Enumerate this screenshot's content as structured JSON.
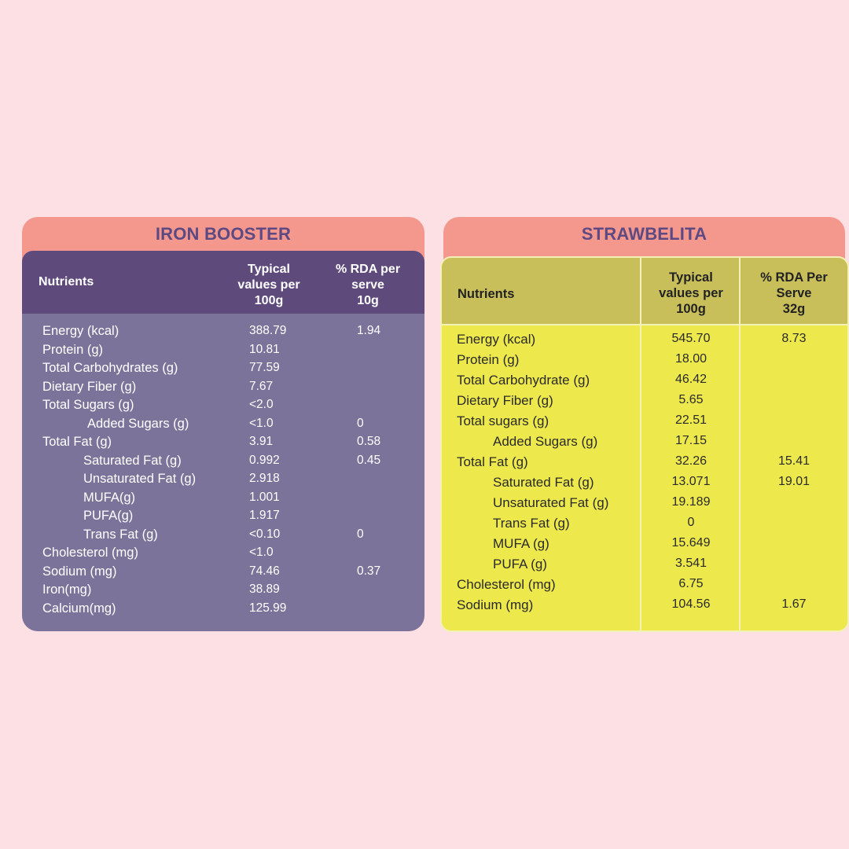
{
  "iron_booster": {
    "title": "IRON BOOSTER",
    "headers": {
      "nutrients": "Nutrients",
      "typical": [
        "Typical",
        "values per",
        "100g"
      ],
      "rda": [
        "% RDA per",
        "serve",
        "10g"
      ]
    },
    "rows": [
      {
        "name": "Energy (kcal)",
        "value": "388.79",
        "rda": "1.94",
        "indent": 0
      },
      {
        "name": "Protein (g)",
        "value": "10.81",
        "rda": "",
        "indent": 0
      },
      {
        "name": "Total Carbohydrates (g)",
        "value": "77.59",
        "rda": "",
        "indent": 0
      },
      {
        "name": "Dietary Fiber (g)",
        "value": "7.67",
        "rda": "",
        "indent": 0
      },
      {
        "name": "Total Sugars (g)",
        "value": "<2.0",
        "rda": "",
        "indent": 0
      },
      {
        "name": "Added Sugars (g)",
        "value": "<1.0",
        "rda": "0",
        "indent": 2
      },
      {
        "name": "Total Fat (g)",
        "value": "3.91",
        "rda": "0.58",
        "indent": 0
      },
      {
        "name": "Saturated Fat (g)",
        "value": "0.992",
        "rda": "0.45",
        "indent": 1
      },
      {
        "name": "Unsaturated Fat (g)",
        "value": "2.918",
        "rda": "",
        "indent": 1
      },
      {
        "name": "MUFA(g)",
        "value": "1.001",
        "rda": "",
        "indent": 1
      },
      {
        "name": "PUFA(g)",
        "value": "1.917",
        "rda": "",
        "indent": 1
      },
      {
        "name": "Trans Fat (g)",
        "value": "<0.10",
        "rda": "0",
        "indent": 1
      },
      {
        "name": "Cholesterol (mg)",
        "value": "<1.0",
        "rda": "",
        "indent": 0
      },
      {
        "name": "Sodium (mg)",
        "value": "74.46",
        "rda": "0.37",
        "indent": 0
      },
      {
        "name": "Iron(mg)",
        "value": "38.89",
        "rda": "",
        "indent": 0
      },
      {
        "name": "Calcium(mg)",
        "value": "125.99",
        "rda": "",
        "indent": 0
      }
    ]
  },
  "strawbelita": {
    "title": "STRAWBELITA",
    "headers": {
      "nutrients": "Nutrients",
      "typical": [
        "Typical",
        "values per",
        "100g"
      ],
      "rda": [
        "% RDA Per",
        "Serve",
        "32g"
      ]
    },
    "rows": [
      {
        "name": "Energy (kcal)",
        "value": "545.70",
        "rda": "8.73",
        "indent": 0
      },
      {
        "name": "Protein (g)",
        "value": "18.00",
        "rda": "",
        "indent": 0
      },
      {
        "name": "Total Carbohydrate (g)",
        "value": "46.42",
        "rda": "",
        "indent": 0
      },
      {
        "name": "Dietary Fiber (g)",
        "value": "5.65",
        "rda": "",
        "indent": 0
      },
      {
        "name": "Total sugars (g)",
        "value": "22.51",
        "rda": "",
        "indent": 0
      },
      {
        "name": "Added Sugars (g)",
        "value": "17.15",
        "rda": "",
        "indent": 1
      },
      {
        "name": "Total Fat (g)",
        "value": "32.26",
        "rda": "15.41",
        "indent": 0
      },
      {
        "name": "Saturated Fat (g)",
        "value": "13.071",
        "rda": "19.01",
        "indent": 1
      },
      {
        "name": "Unsaturated Fat (g)",
        "value": "19.189",
        "rda": "",
        "indent": 1
      },
      {
        "name": "Trans Fat (g)",
        "value": "0",
        "rda": "",
        "indent": 1
      },
      {
        "name": "MUFA (g)",
        "value": "15.649",
        "rda": "",
        "indent": 1
      },
      {
        "name": "PUFA (g)",
        "value": "3.541",
        "rda": "",
        "indent": 1
      },
      {
        "name": "Cholesterol (mg)",
        "value": "6.75",
        "rda": "",
        "indent": 0
      },
      {
        "name": "Sodium (mg)",
        "value": "104.56",
        "rda": "1.67",
        "indent": 0
      }
    ]
  },
  "colors": {
    "background": "#fde0e3",
    "tab": "#f4978c",
    "title_text": "#5e4a82",
    "iron_header": "#5f4a7c",
    "iron_body": "#7b7399",
    "straw_header": "#c9bf5a",
    "straw_body": "#ede84c"
  }
}
